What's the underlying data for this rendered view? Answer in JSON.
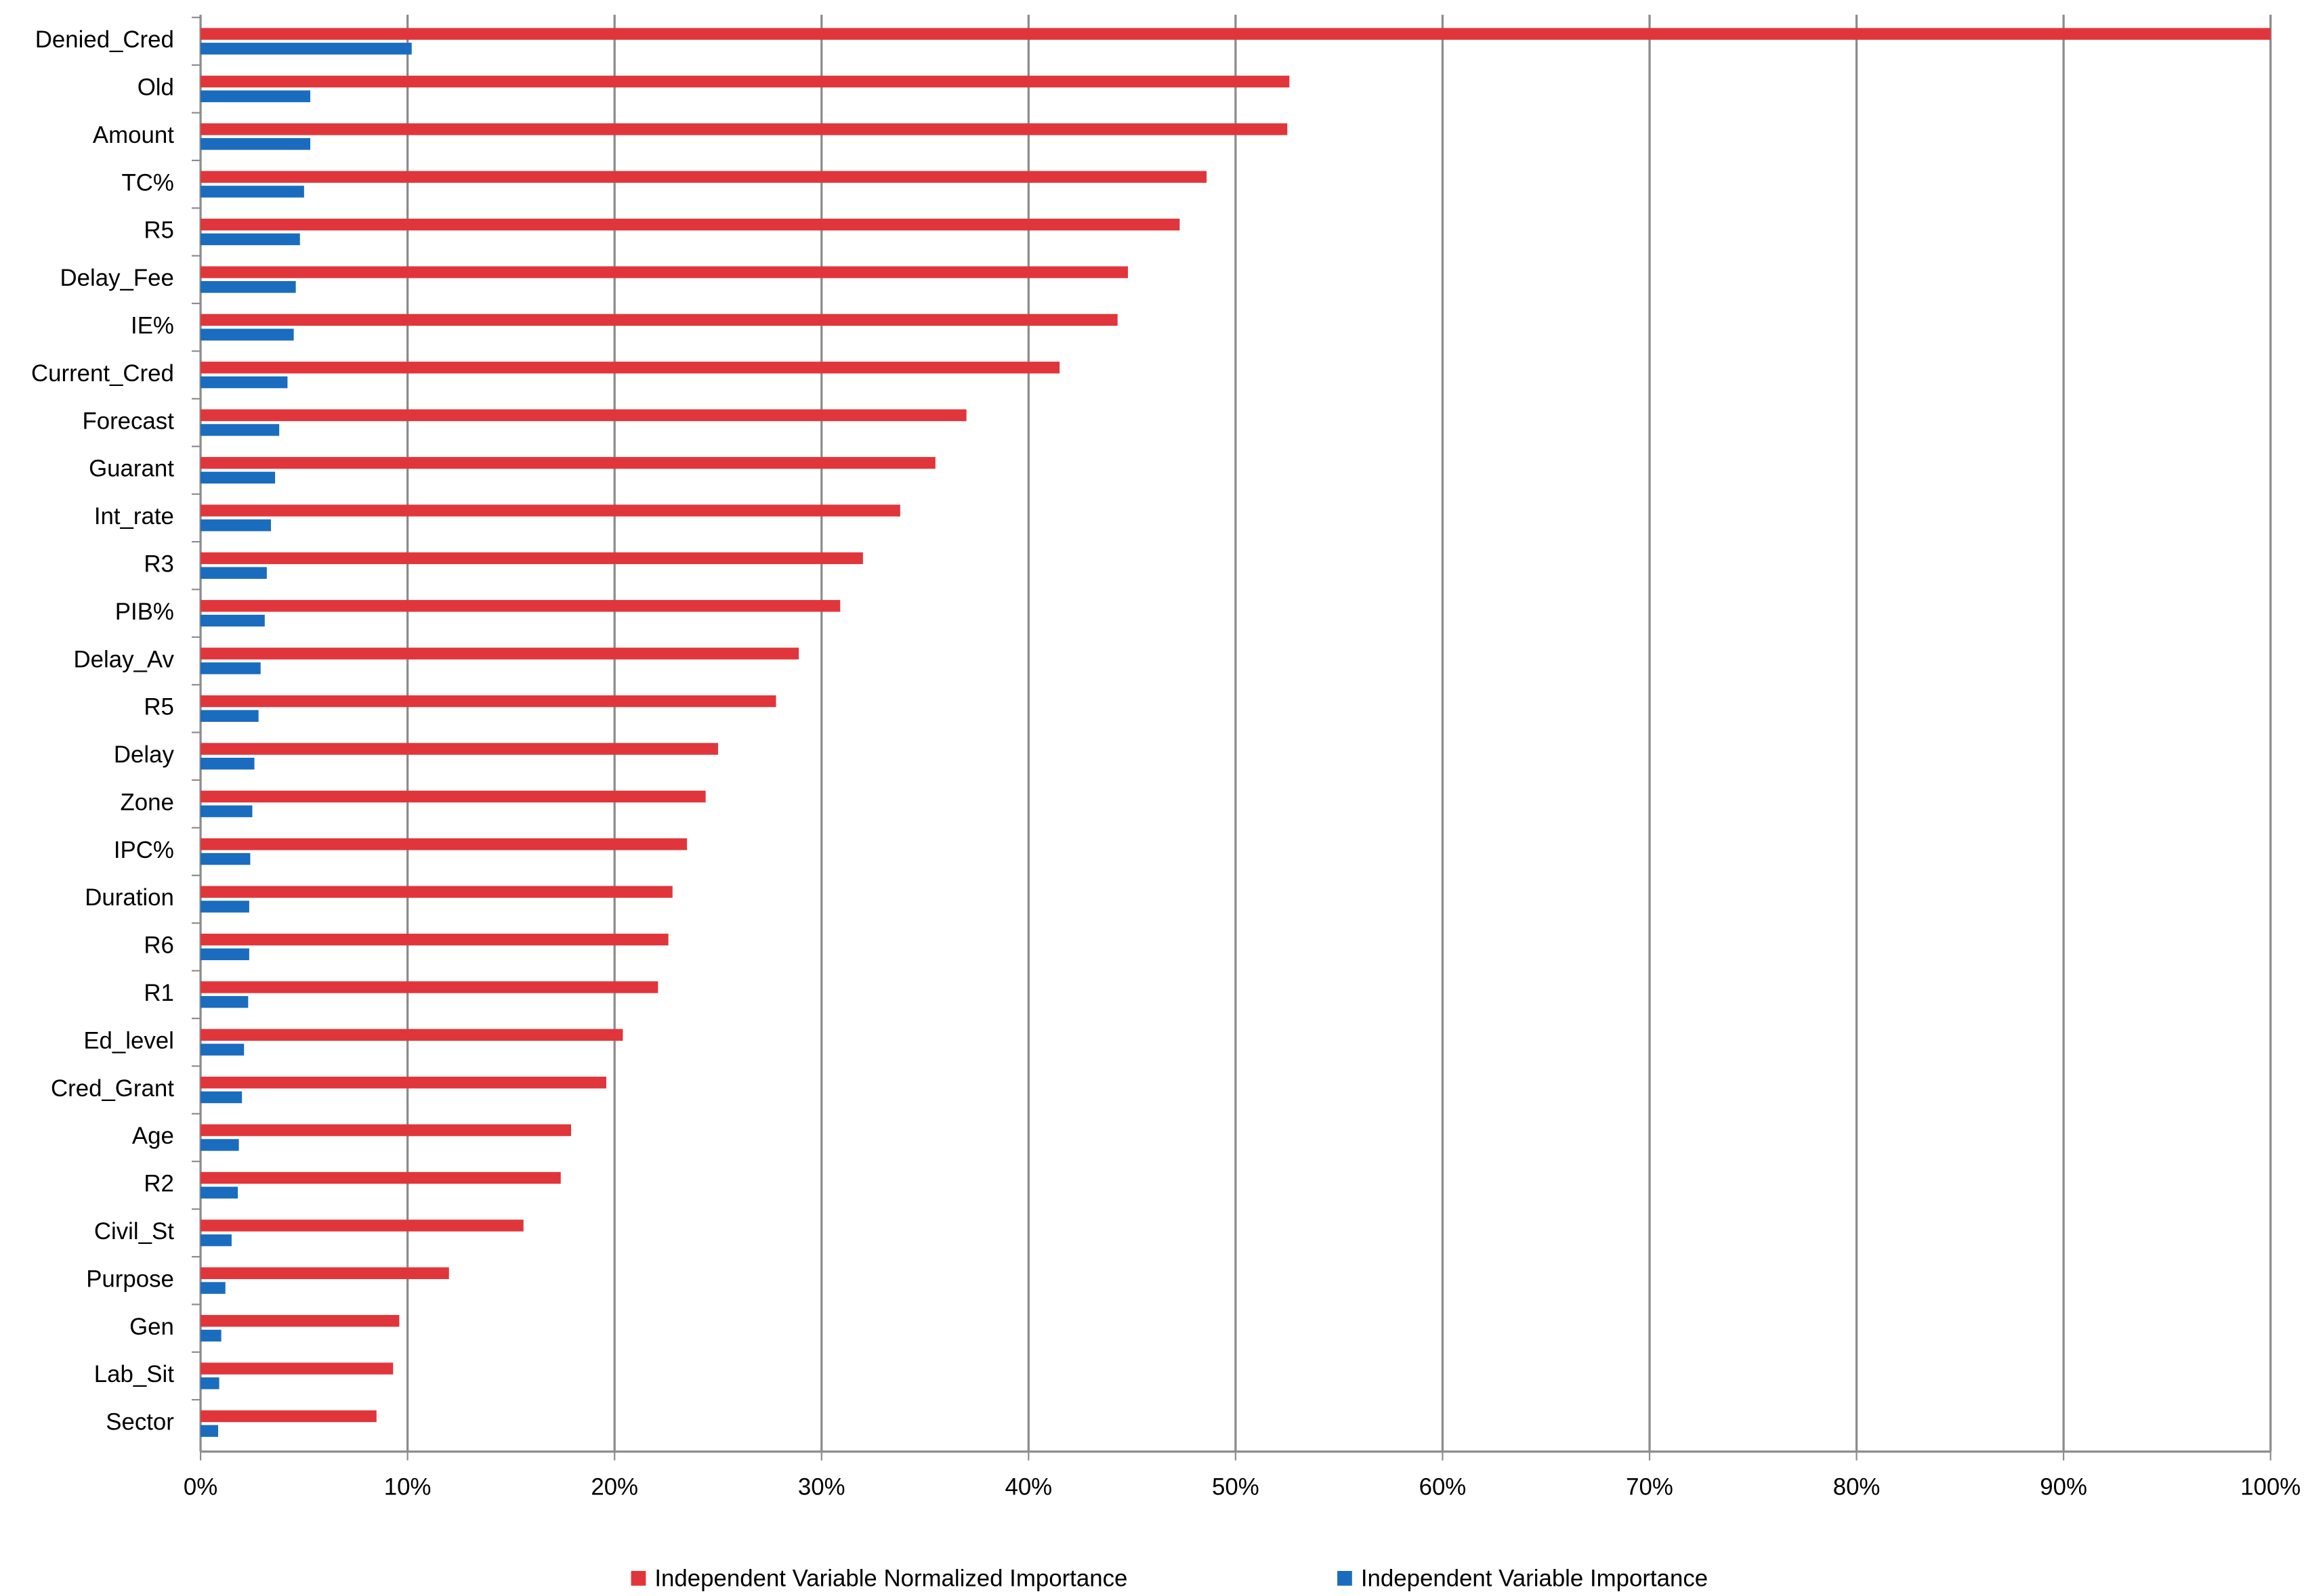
{
  "chart_data": {
    "type": "barh",
    "categories": [
      "Denied_Cred",
      "Old",
      "Amount",
      "TC%",
      "R5",
      "Delay_Fee",
      "IE%",
      "Current_Cred",
      "Forecast",
      "Guarant",
      "Int_rate",
      "R3",
      "PIB%",
      "Delay_Av",
      "R5",
      "Delay",
      "Zone",
      "IPC%",
      "Duration",
      "R6",
      "R1",
      "Ed_level",
      "Cred_Grant",
      "Age",
      "R2",
      "Civil_St",
      "Purpose",
      "Gen",
      "Lab_Sit",
      "Sector"
    ],
    "series": [
      {
        "name": "Independent Variable Normalized Importance",
        "color": "#e0363b",
        "values": [
          100,
          52.6,
          52.5,
          48.6,
          47.3,
          44.8,
          44.3,
          41.5,
          37.0,
          35.5,
          33.8,
          32.0,
          30.9,
          28.9,
          27.8,
          25.0,
          24.4,
          23.5,
          22.8,
          22.6,
          22.1,
          20.4,
          19.6,
          17.9,
          17.4,
          15.6,
          12.0,
          9.6,
          9.3,
          8.5
        ]
      },
      {
        "name": "Independent Variable Importance",
        "color": "#1a6cbf",
        "values": [
          10.2,
          5.3,
          5.3,
          5.0,
          4.8,
          4.6,
          4.5,
          4.2,
          3.8,
          3.6,
          3.4,
          3.2,
          3.1,
          2.9,
          2.8,
          2.6,
          2.5,
          2.4,
          2.35,
          2.35,
          2.3,
          2.1,
          2.0,
          1.85,
          1.8,
          1.5,
          1.2,
          1.0,
          0.9,
          0.85
        ]
      }
    ],
    "xlim": [
      0,
      100
    ],
    "xticks": [
      {
        "value": 0,
        "label": "0%"
      },
      {
        "value": 10,
        "label": "10%"
      },
      {
        "value": 20,
        "label": "20%"
      },
      {
        "value": 30,
        "label": "30%"
      },
      {
        "value": 40,
        "label": "40%"
      },
      {
        "value": 50,
        "label": "50%"
      },
      {
        "value": 60,
        "label": "60%"
      },
      {
        "value": 70,
        "label": "70%"
      },
      {
        "value": 80,
        "label": "80%"
      },
      {
        "value": 90,
        "label": "90%"
      },
      {
        "value": 100,
        "label": "100%"
      }
    ],
    "grid": true,
    "legend": "bottom"
  }
}
